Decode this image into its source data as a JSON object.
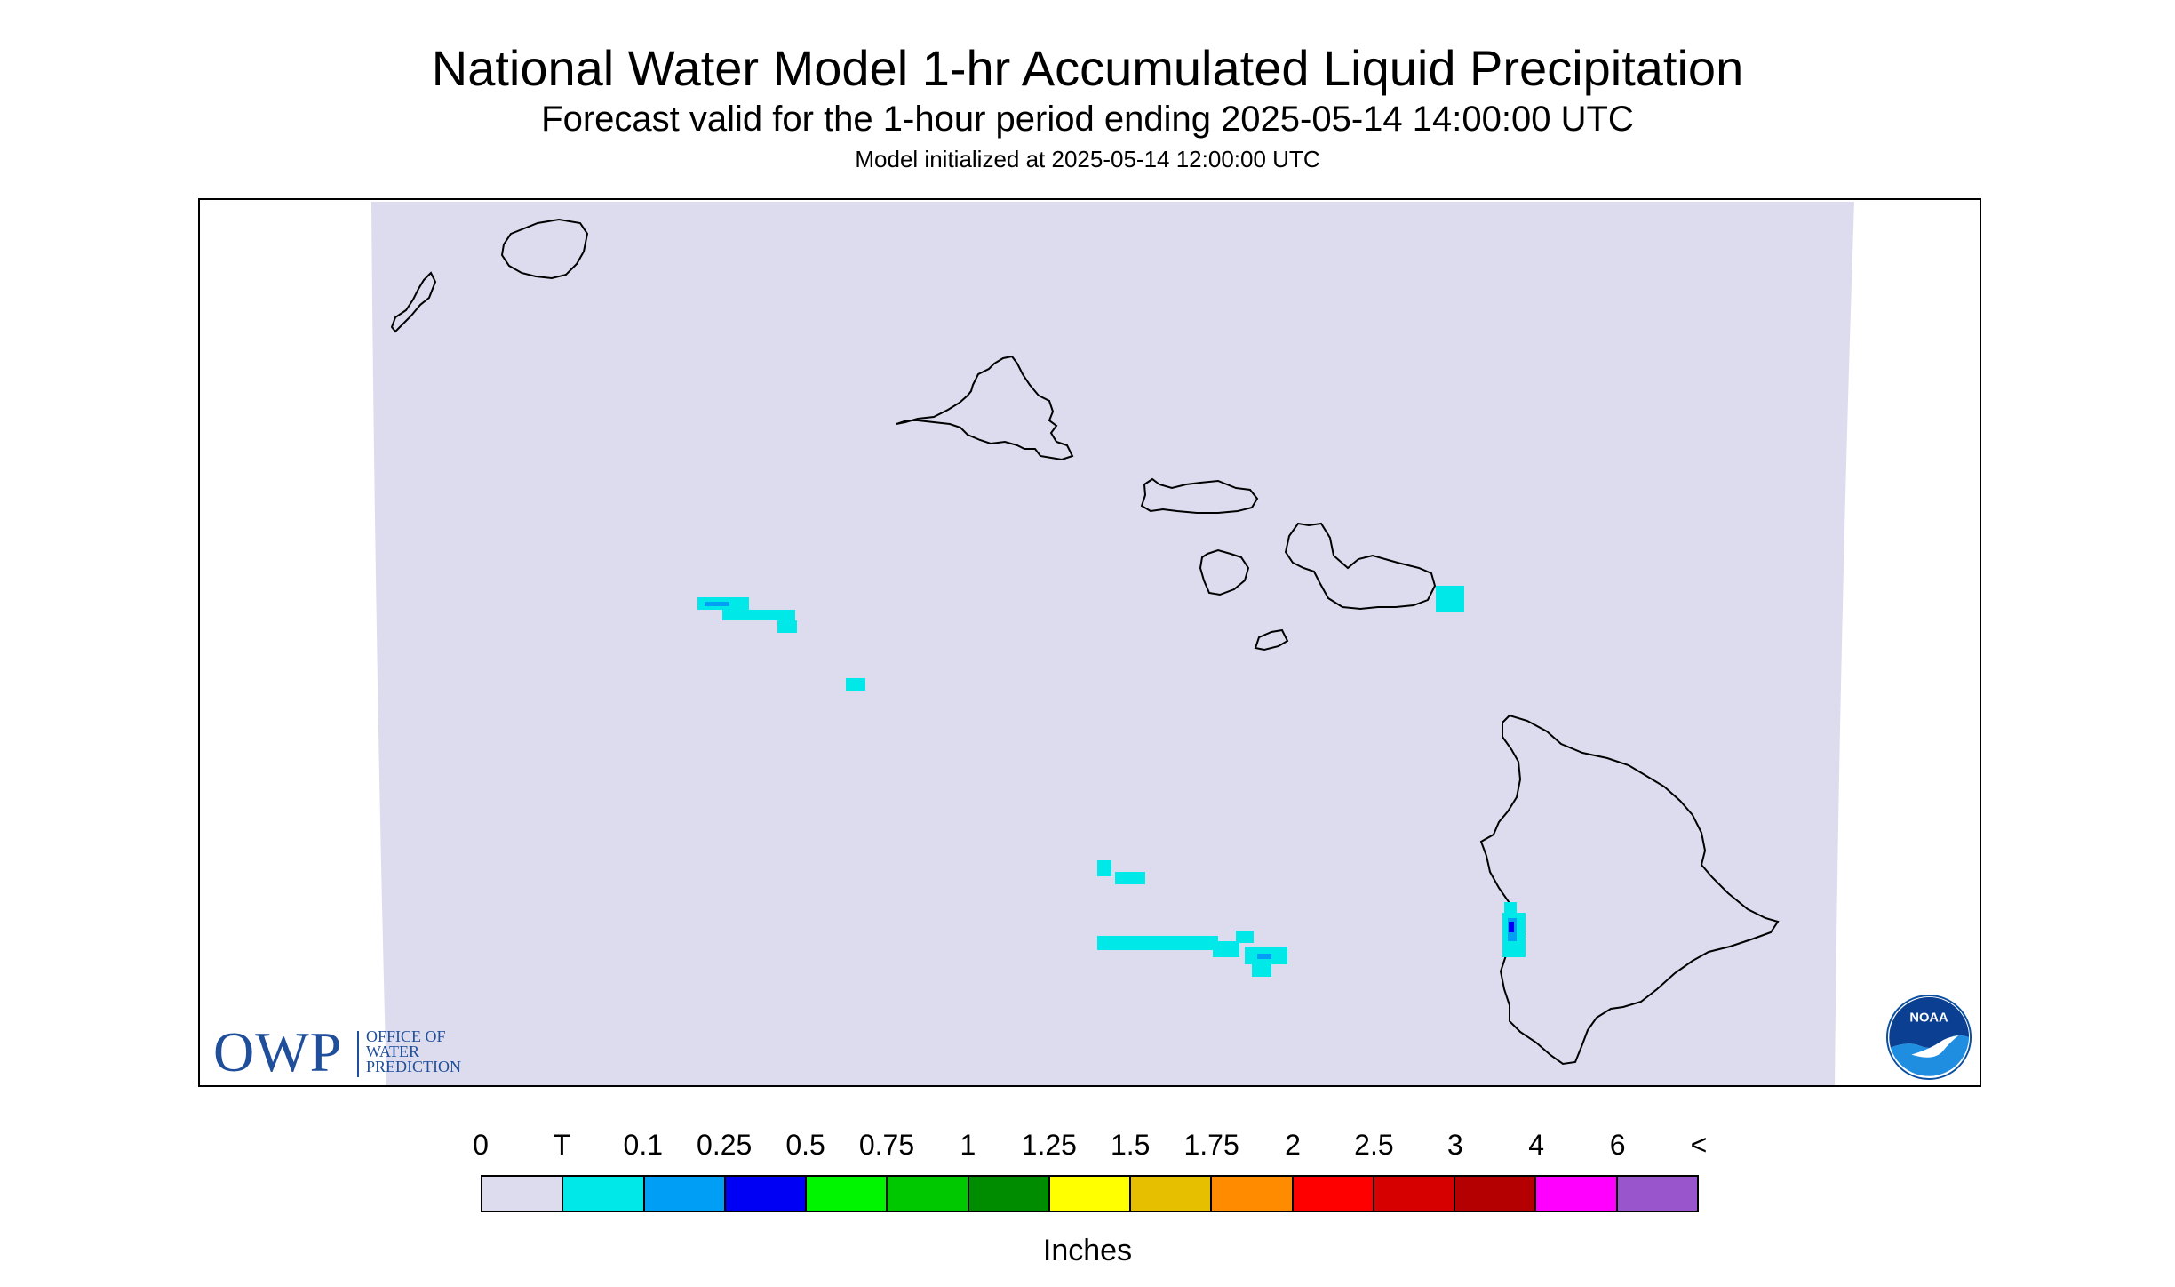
{
  "title": "National Water Model 1-hr Accumulated Liquid Precipitation",
  "subtitle": "Forecast valid for the 1-hour period ending 2025-05-14 14:00:00 UTC",
  "model_init": "Model initialized at 2025-05-14 12:00:00 UTC",
  "map": {
    "region": "Hawaiian Islands",
    "background_color": "#dcdcee",
    "land_outline_color": "#000000"
  },
  "owp_logo": {
    "letters": "OWP",
    "line1": "OFFICE OF",
    "line2": "WATER",
    "line3": "PREDICTION",
    "color": "#1f4e9a"
  },
  "noaa_logo": {
    "text": "NOAA"
  },
  "legend": {
    "labels": [
      "0",
      "T",
      "0.1",
      "0.25",
      "0.5",
      "0.75",
      "1",
      "1.25",
      "1.5",
      "1.75",
      "2",
      "2.5",
      "3",
      "4",
      "6",
      "<"
    ],
    "colors": [
      "#dcdcee",
      "#00e8e8",
      "#009ef5",
      "#0000f5",
      "#00f500",
      "#00c800",
      "#008c00",
      "#ffff00",
      "#e6c000",
      "#ff8c00",
      "#ff0000",
      "#d60000",
      "#b40000",
      "#ff00ff",
      "#9955cc"
    ],
    "unit": "Inches"
  }
}
